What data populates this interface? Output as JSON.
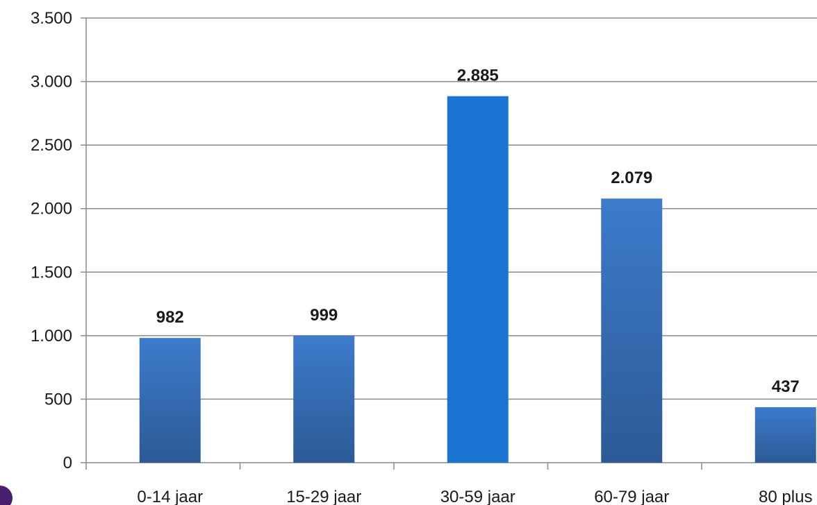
{
  "chart_data": {
    "type": "bar",
    "title": "",
    "xlabel": "",
    "ylabel": "",
    "categories": [
      "0-14 jaar",
      "15-29 jaar",
      "30-59 jaar",
      "60-79 jaar",
      "80 plus"
    ],
    "values": [
      982,
      999,
      2885,
      2079,
      437
    ],
    "value_labels": [
      "982",
      "999",
      "2.885",
      "2.079",
      "437"
    ],
    "ylim": [
      0,
      3500
    ],
    "yticks": [
      0,
      500,
      1000,
      1500,
      2000,
      2500,
      3000,
      3500
    ],
    "ytick_labels": [
      "0",
      "500",
      "1.000",
      "1.500",
      "2.000",
      "2.500",
      "3.000",
      "3.500"
    ],
    "grid": true,
    "legend": "none",
    "colors": {
      "bar_top": "#3d7bcc",
      "bar_bottom": "#2c5a96",
      "bar_highlight": "#1a75d2",
      "grid": "#8a8a8a"
    },
    "highlight_index": 2
  }
}
